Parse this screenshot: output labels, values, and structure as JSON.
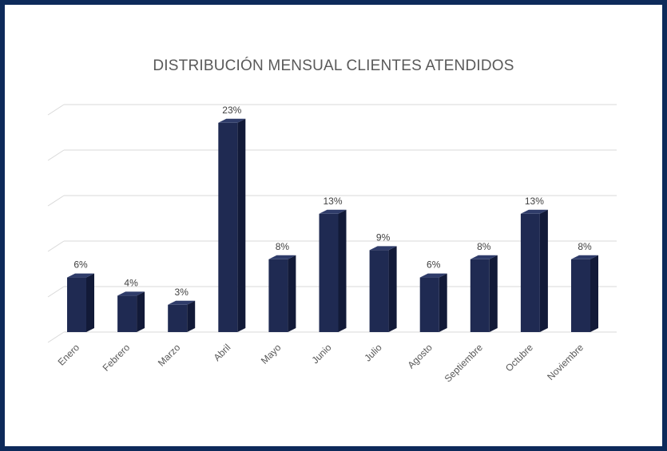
{
  "chart_data": {
    "type": "bar",
    "title": "DISTRIBUCIÓN MENSUAL CLIENTES ATENDIDOS",
    "categories": [
      "Enero",
      "Febrero",
      "Marzo",
      "Abril",
      "Mayo",
      "Junio",
      "Julio",
      "Agosto",
      "Septiembre",
      "Octubre",
      "Noviembre"
    ],
    "values": [
      6,
      4,
      3,
      23,
      8,
      13,
      9,
      6,
      8,
      13,
      8
    ],
    "data_labels": [
      "6%",
      "4%",
      "3%",
      "23%",
      "8%",
      "13%",
      "9%",
      "6%",
      "8%",
      "13%",
      "8%"
    ],
    "ylim": [
      0,
      25
    ],
    "grid": true,
    "bar_style": "3d",
    "colors": {
      "bar_front": "#1f2a52",
      "bar_side": "#121a38",
      "bar_top": "#2f3c6a",
      "frame": "#0d2a5a",
      "grid": "#d9d9d9"
    }
  }
}
